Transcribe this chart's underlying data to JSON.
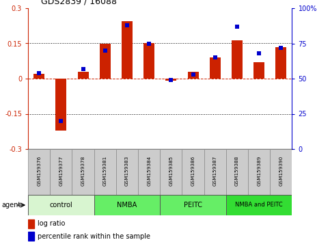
{
  "title": "GDS2839 / 16088",
  "samples": [
    "GSM159376",
    "GSM159377",
    "GSM159378",
    "GSM159381",
    "GSM159383",
    "GSM159384",
    "GSM159385",
    "GSM159386",
    "GSM159387",
    "GSM159388",
    "GSM159389",
    "GSM159390"
  ],
  "log_ratio": [
    0.02,
    -0.22,
    0.03,
    0.148,
    0.245,
    0.152,
    -0.01,
    0.03,
    0.09,
    0.163,
    0.07,
    0.135
  ],
  "percentile_rank": [
    54,
    20,
    57,
    70,
    88,
    75,
    49,
    53,
    65,
    87,
    68,
    72
  ],
  "bar_color": "#cc2200",
  "dot_color": "#0000cc",
  "groups": [
    {
      "label": "control",
      "start": 0,
      "end": 3,
      "color": "#d8f5d0"
    },
    {
      "label": "NMBA",
      "start": 3,
      "end": 6,
      "color": "#66ee66"
    },
    {
      "label": "PEITC",
      "start": 6,
      "end": 9,
      "color": "#66ee66"
    },
    {
      "label": "NMBA and PEITC",
      "start": 9,
      "end": 12,
      "color": "#33dd33"
    }
  ],
  "ylim_left": [
    -0.3,
    0.3
  ],
  "ylim_right": [
    0,
    100
  ],
  "yticks_left": [
    -0.3,
    -0.15,
    0.0,
    0.15,
    0.3
  ],
  "yticks_right": [
    0,
    25,
    50,
    75,
    100
  ],
  "ytick_labels_left": [
    "-0.3",
    "-0.15",
    "0",
    "0.15",
    "0.3"
  ],
  "ytick_labels_right": [
    "0",
    "25",
    "50",
    "75",
    "100%"
  ],
  "legend_items": [
    {
      "label": "log ratio",
      "color": "#cc2200"
    },
    {
      "label": "percentile rank within the sample",
      "color": "#0000cc"
    }
  ],
  "agent_label": "agent"
}
